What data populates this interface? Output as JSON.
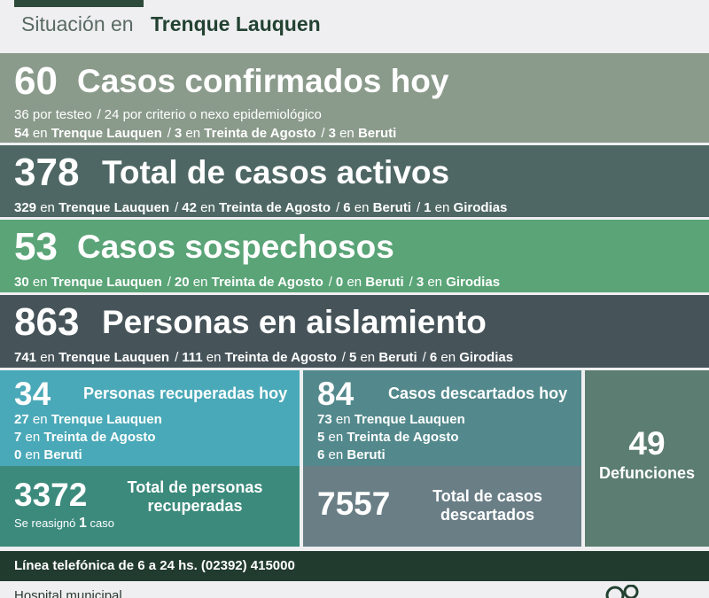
{
  "header": {
    "prefix": "Situación en",
    "city": "Trenque Lauquen"
  },
  "confirmed": {
    "count": "60",
    "title": "Casos confirmados hoy",
    "by_test": "36 por testeo",
    "by_criteria": "24 por criterio o nexo epidemiológico",
    "tl": "54",
    "ta": "3",
    "beruti": "3"
  },
  "active": {
    "count": "378",
    "title": "Total de casos activos",
    "tl": "329",
    "ta": "42",
    "beruti": "6",
    "girodias": "1"
  },
  "suspected": {
    "count": "53",
    "title": "Casos sospechosos",
    "tl": "30",
    "ta": "20",
    "beruti": "0",
    "girodias": "3"
  },
  "isolation": {
    "count": "863",
    "title": "Personas en aislamiento",
    "tl": "741",
    "ta": "111",
    "beruti": "5",
    "girodias": "6"
  },
  "recovered_today": {
    "count": "34",
    "title": "Personas recuperadas hoy",
    "tl": "27",
    "ta": "7",
    "beruti": "0"
  },
  "recovered_total": {
    "count": "3372",
    "label_1": "Total de personas",
    "label_2": "recuperadas",
    "reassigned_pre": "Se reasignó",
    "reassigned_n": "1",
    "reassigned_post": "caso"
  },
  "discarded_today": {
    "count": "84",
    "title": "Casos descartados hoy",
    "tl": "73",
    "ta": "5",
    "beruti": "6"
  },
  "discarded_total": {
    "count": "7557",
    "label_1": "Total de casos",
    "label_2": "descartados"
  },
  "deaths": {
    "count": "49",
    "label": "Defunciones"
  },
  "places": {
    "en": "en",
    "tl": "Trenque Lauquen",
    "ta": "Treinta de Agosto",
    "beruti": "Beruti",
    "girodias": "Girodias",
    "sep": "/"
  },
  "phone": {
    "text": "Línea telefónica de 6 a 24 hs. (02392) 415000"
  },
  "footer": {
    "text": "Hospital municipal"
  },
  "colors": {
    "dark_green": "#213b2e",
    "confirmed": "#8a9a8b",
    "active": "#4e6764",
    "suspected": "#5aa477",
    "isolation": "#46545a",
    "recovered": "#4aa9b8",
    "deaths": "#5c7d72"
  }
}
